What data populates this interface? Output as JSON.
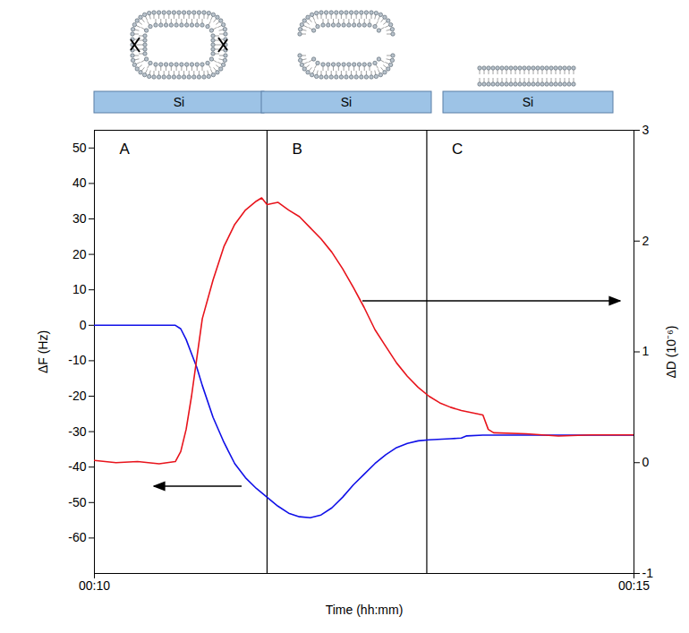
{
  "chart_data": {
    "type": "line",
    "xlabel": "Time (hh:mm)",
    "ylabel": "ΔF (Hz)",
    "y2label": "ΔD (10⁻⁶)",
    "xlim": [
      10,
      15
    ],
    "xticks": [
      {
        "value": 10,
        "label": "00:10"
      },
      {
        "value": 15,
        "label": "00:15"
      }
    ],
    "ylim": [
      -70,
      55
    ],
    "yticks": [
      -60,
      -50,
      -40,
      -30,
      -20,
      -10,
      0,
      10,
      20,
      30,
      40,
      50
    ],
    "y2lim": [
      -1,
      3
    ],
    "y2ticks": [
      -1,
      0,
      1,
      2,
      3
    ],
    "vlines": [
      11.6,
      13.08
    ],
    "annotations": [
      "A",
      "B",
      "C"
    ],
    "series": [
      {
        "name": "ΔF",
        "color": "#1010e8",
        "axis": "y",
        "x": [
          10,
          10.5,
          10.75,
          10.8,
          10.85,
          10.9,
          10.95,
          11.0,
          11.1,
          11.2,
          11.3,
          11.4,
          11.5,
          11.6,
          11.7,
          11.8,
          11.9,
          12.0,
          12.1,
          12.2,
          12.3,
          12.4,
          12.5,
          12.6,
          12.7,
          12.8,
          12.9,
          13.0,
          13.1,
          13.3,
          13.4,
          13.45,
          13.6,
          14,
          14.5,
          15
        ],
        "values": [
          0,
          0,
          0,
          -1,
          -4,
          -8,
          -12,
          -17,
          -26,
          -33,
          -39,
          -43,
          -46,
          -48.5,
          -51,
          -53,
          -54,
          -54.3,
          -53.5,
          -51.5,
          -48.5,
          -45,
          -42,
          -39,
          -36.5,
          -34.5,
          -33.3,
          -32.6,
          -32.3,
          -32,
          -31.8,
          -31.2,
          -31,
          -31,
          -31,
          -31
        ]
      },
      {
        "name": "ΔD",
        "color": "#e8141c",
        "axis": "y2",
        "x": [
          10,
          10.2,
          10.4,
          10.6,
          10.75,
          10.8,
          10.85,
          10.9,
          10.95,
          11.0,
          11.1,
          11.2,
          11.3,
          11.4,
          11.5,
          11.55,
          11.6,
          11.7,
          11.8,
          11.9,
          12.0,
          12.1,
          12.2,
          12.3,
          12.4,
          12.5,
          12.6,
          12.7,
          12.8,
          12.9,
          13.0,
          13.1,
          13.2,
          13.3,
          13.4,
          13.5,
          13.6,
          13.65,
          13.7,
          14,
          14.3,
          14.6,
          15
        ],
        "values": [
          0.02,
          0,
          0.01,
          -0.01,
          0.01,
          0.1,
          0.3,
          0.6,
          0.95,
          1.3,
          1.65,
          1.95,
          2.15,
          2.28,
          2.36,
          2.39,
          2.33,
          2.35,
          2.28,
          2.22,
          2.12,
          2.02,
          1.9,
          1.75,
          1.58,
          1.4,
          1.2,
          1.05,
          0.9,
          0.78,
          0.68,
          0.6,
          0.54,
          0.5,
          0.47,
          0.45,
          0.43,
          0.3,
          0.27,
          0.26,
          0.24,
          0.25,
          0.25
        ]
      }
    ]
  },
  "diagram": {
    "substrate_labels": [
      "Si",
      "Si",
      "Si"
    ]
  }
}
